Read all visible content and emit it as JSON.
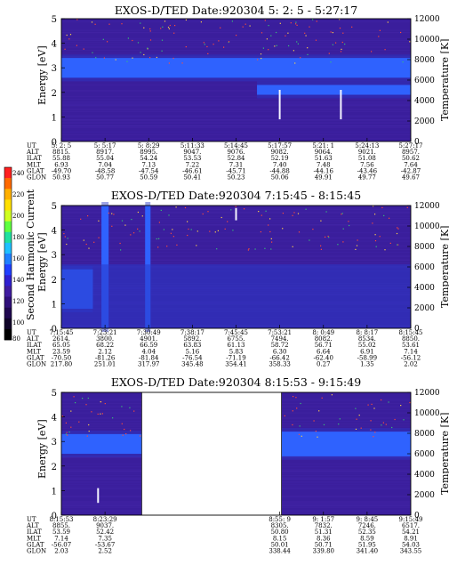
{
  "colors": {
    "background_low": "#3a1e9c",
    "band_mid": "#2a38c8",
    "band_high": "#2f63ff",
    "spike": "#f4f4ff",
    "noise_red": "#ff4a3a",
    "noise_yellow": "#ffd24a",
    "noise_green": "#38c078",
    "gap": "#ffffff"
  },
  "colorbar": {
    "label": "Second Harmonic Current",
    "ticks": [
      "240",
      "220",
      "200",
      "180",
      "160",
      "140",
      "120",
      "100",
      "80"
    ],
    "min": 80,
    "max": 240
  },
  "panels": [
    {
      "title": "EXOS-D/TED   Date:920304   5: 2: 5 - 5:27:17",
      "y_label": "Energy [eV]",
      "y2_label": "Temperature [K]",
      "y_ticks": [
        "5",
        "4",
        "3",
        "2",
        "1",
        "0"
      ],
      "y2_ticks": [
        "12000",
        "10000",
        "8000",
        "6000",
        "4000",
        "2000",
        "0"
      ],
      "row_labels": [
        "UT",
        "ALT",
        "ILAT",
        "MLT",
        "GLAT",
        "GLON"
      ],
      "columns": [
        [
          "5: 2: 5",
          "8815.",
          "55.88",
          "6.93",
          "-49.70",
          "50.93"
        ],
        [
          "5: 5:17",
          "8917.",
          "55.04",
          "7.04",
          "-48.58",
          "50.77"
        ],
        [
          "5: 8:29",
          "8995.",
          "54.24",
          "7.13",
          "-47.54",
          "50.59"
        ],
        [
          "5:11:33",
          "9047.",
          "53.53",
          "7.22",
          "-46.61",
          "50.41"
        ],
        [
          "5:14:45",
          "9076.",
          "52.84",
          "7.31",
          "-45.71",
          "50.23"
        ],
        [
          "5:17:57",
          "9082.",
          "52.19",
          "7.40",
          "-44.88",
          "50.06"
        ],
        [
          "5:21: 1",
          "9064.",
          "51.63",
          "7.48",
          "-44.16",
          "49.91"
        ],
        [
          "5:24:13",
          "9021.",
          "51.08",
          "7.56",
          "-43.46",
          "49.77"
        ],
        [
          "5:27:17",
          "8957.",
          "50.62",
          "7.64",
          "-42.87",
          "49.67"
        ]
      ]
    },
    {
      "title": "EXOS-D/TED   Date:920304   7:15:45 - 8:15:45",
      "y_label": "Energy [eV]",
      "y2_label": "Temperature [K]",
      "y_ticks": [
        "5",
        "4",
        "3",
        "2",
        "1",
        "0"
      ],
      "y2_ticks": [
        "12000",
        "10000",
        "8000",
        "6000",
        "4000",
        "2000",
        "0"
      ],
      "row_labels": [
        "UT",
        "ALT",
        "ILAT",
        "MLT",
        "GLAT",
        "GLON"
      ],
      "columns": [
        [
          "7:15:45",
          "2614.",
          "65.05",
          "23.59",
          "-70.50",
          "217.80"
        ],
        [
          "7:23:21",
          "3800.",
          "68.22",
          "2.12",
          "-81.26",
          "251.01"
        ],
        [
          "7:30:49",
          "4901.",
          "66.59",
          "4.04",
          "-81.84",
          "317.97"
        ],
        [
          "7:38:17",
          "5892.",
          "63.83",
          "5.16",
          "-76.54",
          "345.48"
        ],
        [
          "7:45:45",
          "6755.",
          "61.13",
          "5.83",
          "-71.19",
          "354.41"
        ],
        [
          "7:53:21",
          "7494.",
          "58.72",
          "6.30",
          "-66.42",
          "358.33"
        ],
        [
          "8: 0:49",
          "8082.",
          "56.71",
          "6.64",
          "-62.40",
          "0.27"
        ],
        [
          "8: 8:17",
          "8534.",
          "55.02",
          "6.91",
          "-58.99",
          "1.35"
        ],
        [
          "8:15:45",
          "8850.",
          "53.61",
          "7.14",
          "-56.12",
          "2.02"
        ]
      ]
    },
    {
      "title": "EXOS-D/TED   Date:920304   8:15:53 - 9:15:49",
      "y_label": "Energy [eV]",
      "y2_label": "Temperature [K]",
      "y_ticks": [
        "5",
        "4",
        "3",
        "2",
        "1",
        "0"
      ],
      "y2_ticks": [
        "12000",
        "10000",
        "8000",
        "6000",
        "4000",
        "2000",
        "0"
      ],
      "row_labels": [
        "UT",
        "ALT",
        "ILAT",
        "MLT",
        "GLAT",
        "GLON"
      ],
      "columns": [
        [
          "8:15:53",
          "8855.",
          "53.59",
          "7.14",
          "-56.07",
          "2.03"
        ],
        [
          "8:23:29",
          "9037.",
          "52.42",
          "7.35",
          "-53.67",
          "2.52"
        ],
        [
          "",
          "",
          "",
          "",
          "",
          ""
        ],
        [
          "",
          "",
          "",
          "",
          "",
          ""
        ],
        [
          "",
          "",
          "",
          "",
          "",
          ""
        ],
        [
          "8:55: 9",
          "8305.",
          "50.80",
          "8.15",
          "50.01",
          "338.44"
        ],
        [
          "9: 1:57",
          "7832.",
          "51.31",
          "8.36",
          "50.71",
          "339.80"
        ],
        [
          "9: 8:45",
          "7246.",
          "52.35",
          "8.59",
          "51.95",
          "341.40"
        ],
        [
          "9:15:49",
          "6517.",
          "54.21",
          "8.91",
          "54.03",
          "343.55"
        ]
      ]
    }
  ],
  "chart_data": [
    {
      "type": "heatmap",
      "title": "EXOS-D/TED   Date:920304   5: 2: 5 - 5:27:17",
      "ylabel": "Energy [eV]",
      "y2label": "Temperature [K]",
      "ylim": [
        0,
        5
      ],
      "y2lim": [
        0,
        12000
      ],
      "x_ticks": [
        "5: 2: 5",
        "5: 5:17",
        "5: 8:29",
        "5:11:33",
        "5:14:45",
        "5:17:57",
        "5:21: 1",
        "5:24:13",
        "5:27:17"
      ],
      "bands": [
        {
          "e_min": 2.6,
          "e_max": 3.4,
          "level": "high",
          "t_start_frac": 0.0,
          "t_end_frac": 1.0
        },
        {
          "e_min": 1.9,
          "e_max": 2.3,
          "level": "high",
          "t_start_frac": 0.56,
          "t_end_frac": 1.0
        }
      ],
      "spikes": [
        {
          "t_frac": 0.625,
          "e_min": 0.9,
          "e_max": 2.1
        },
        {
          "t_frac": 0.8,
          "e_min": 0.9,
          "e_max": 2.1
        }
      ],
      "gaps": []
    },
    {
      "type": "heatmap",
      "title": "EXOS-D/TED   Date:920304   7:15:45 - 8:15:45",
      "ylabel": "Energy [eV]",
      "y2label": "Temperature [K]",
      "ylim": [
        0,
        5
      ],
      "y2lim": [
        0,
        12000
      ],
      "x_ticks": [
        "7:15:45",
        "7:23:21",
        "7:30:49",
        "7:38:17",
        "7:45:45",
        "7:53:21",
        "8: 0:49",
        "8: 8:17",
        "8:15:45"
      ],
      "bands": [
        {
          "e_min": 0.8,
          "e_max": 2.4,
          "level": "high",
          "t_start_frac": 0.0,
          "t_end_frac": 0.09
        },
        {
          "e_min": 0.0,
          "e_max": 5.0,
          "level": "high",
          "t_start_frac": 0.115,
          "t_end_frac": 0.135
        },
        {
          "e_min": 0.0,
          "e_max": 5.0,
          "level": "high",
          "t_start_frac": 0.24,
          "t_end_frac": 0.255
        },
        {
          "e_min": 0.0,
          "e_max": 2.6,
          "level": "mid",
          "t_start_frac": 0.0,
          "t_end_frac": 1.0
        }
      ],
      "spikes": [
        {
          "t_frac": 0.5,
          "e_min": 4.4,
          "e_max": 4.9
        }
      ],
      "gaps": []
    },
    {
      "type": "heatmap",
      "title": "EXOS-D/TED   Date:920304   8:15:53 - 9:15:49",
      "ylabel": "Energy [eV]",
      "y2label": "Temperature [K]",
      "ylim": [
        0,
        5
      ],
      "y2lim": [
        0,
        12000
      ],
      "x_ticks": [
        "8:15:53",
        "8:23:29",
        "8:55: 9",
        "9: 1:57",
        "9: 8:45",
        "9:15:49"
      ],
      "bands": [
        {
          "e_min": 2.5,
          "e_max": 3.3,
          "level": "high",
          "t_start_frac": 0.0,
          "t_end_frac": 0.23
        },
        {
          "e_min": 2.4,
          "e_max": 3.4,
          "level": "high",
          "t_start_frac": 0.63,
          "t_end_frac": 1.0
        }
      ],
      "spikes": [
        {
          "t_frac": 0.105,
          "e_min": 0.5,
          "e_max": 1.1
        }
      ],
      "gaps": [
        {
          "t_start_frac": 0.23,
          "t_end_frac": 0.63
        }
      ]
    }
  ]
}
